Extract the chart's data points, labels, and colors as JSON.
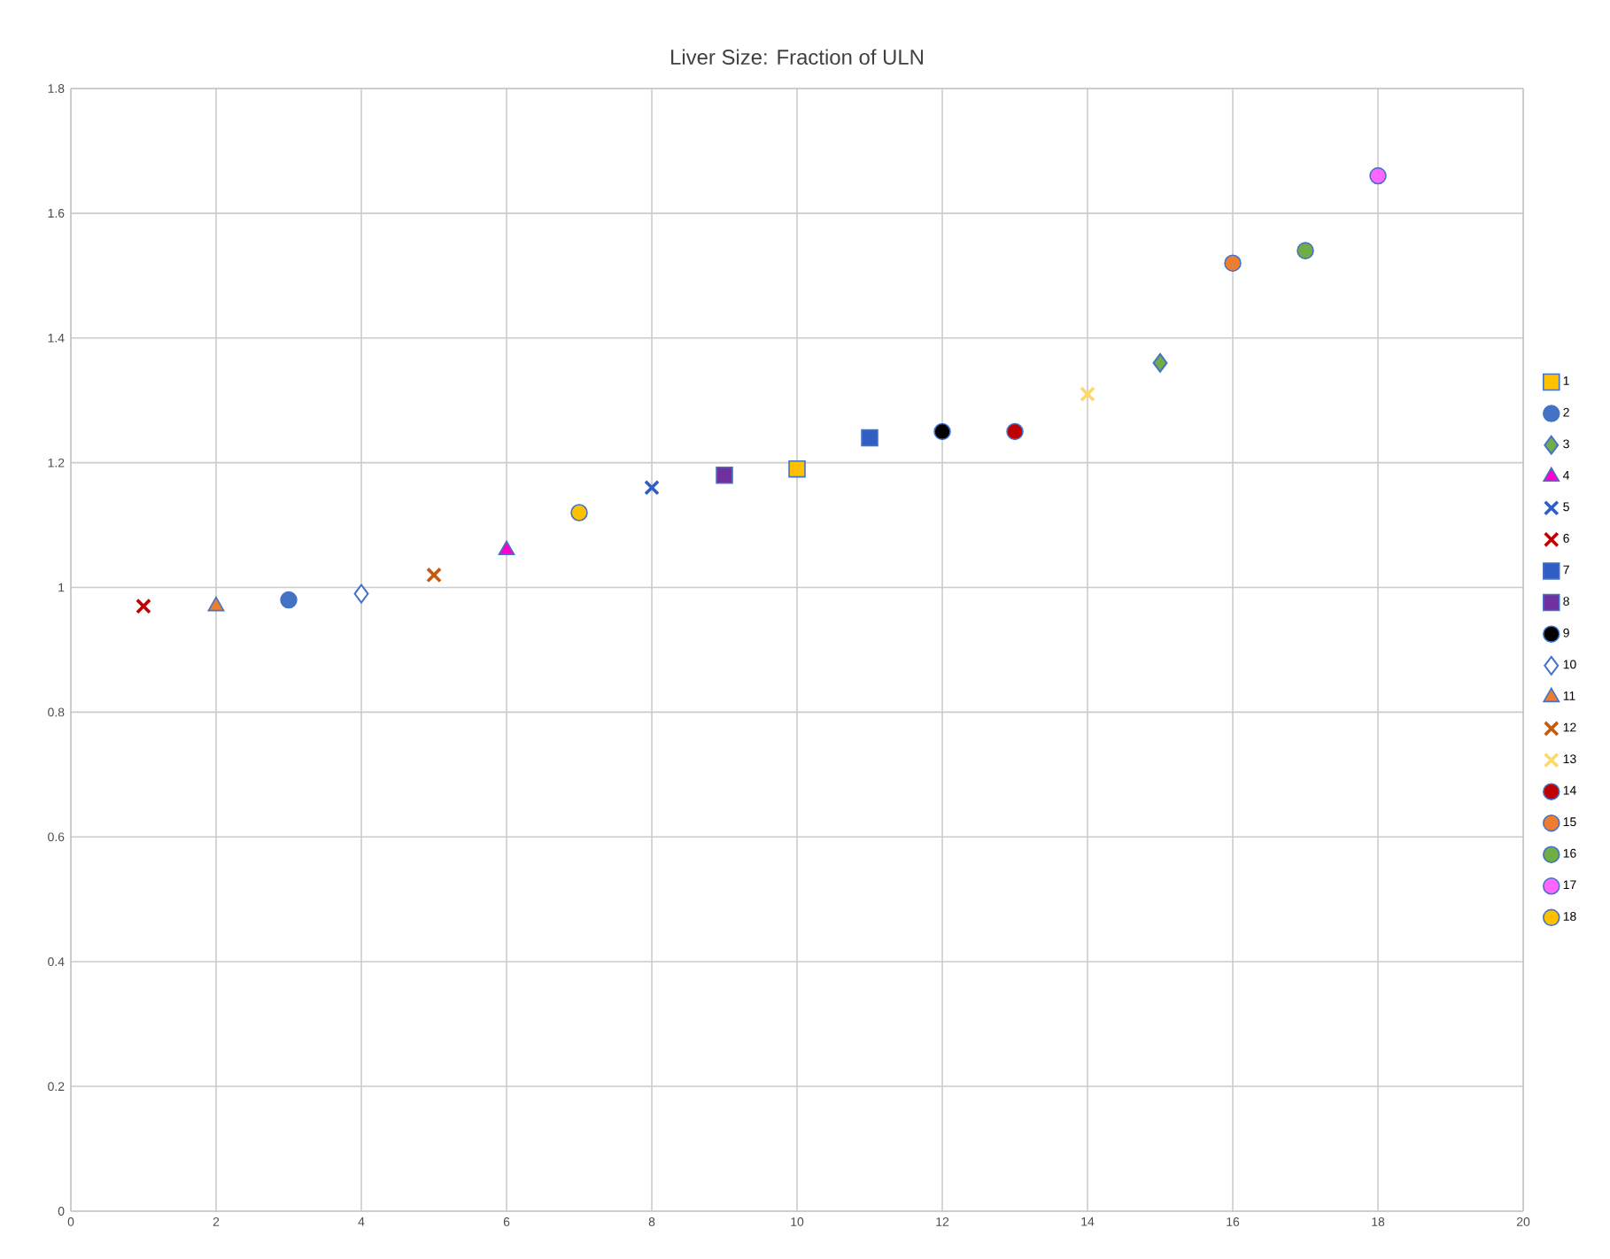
{
  "chart_data": {
    "type": "scatter",
    "title": "Liver Size: Fraction of ULN",
    "xlim": [
      0,
      20
    ],
    "xticks": [
      0,
      2,
      4,
      6,
      8,
      10,
      12,
      14,
      16,
      18,
      20
    ],
    "ylim": [
      0,
      1.8
    ],
    "yticks": [
      0,
      0.2,
      0.4,
      0.6,
      0.8,
      1,
      1.2,
      1.4,
      1.6,
      1.8
    ],
    "grid": true,
    "legend": "right",
    "series": [
      {
        "name": "1",
        "x": [
          10
        ],
        "values": [
          1.19
        ],
        "marker": "square",
        "color": "#ffc000"
      },
      {
        "name": "2",
        "x": [
          3
        ],
        "values": [
          0.98
        ],
        "marker": "circle",
        "color": "#4472c4"
      },
      {
        "name": "3",
        "x": [
          15
        ],
        "values": [
          1.36
        ],
        "marker": "diamond",
        "color": "#70ad47"
      },
      {
        "name": "4",
        "x": [
          6
        ],
        "values": [
          1.06
        ],
        "marker": "triangle",
        "color": "#ff00cc"
      },
      {
        "name": "5",
        "x": [
          8
        ],
        "values": [
          1.16
        ],
        "marker": "cross",
        "color": "#2f5fc4"
      },
      {
        "name": "6",
        "x": [
          1
        ],
        "values": [
          0.97
        ],
        "marker": "cross",
        "color": "#c00000"
      },
      {
        "name": "7",
        "x": [
          11
        ],
        "values": [
          1.24
        ],
        "marker": "square",
        "color": "#2f5fc4"
      },
      {
        "name": "8",
        "x": [
          9
        ],
        "values": [
          1.18
        ],
        "marker": "square",
        "color": "#7030a0"
      },
      {
        "name": "9",
        "x": [
          12
        ],
        "values": [
          1.25
        ],
        "marker": "circle",
        "color": "#000000"
      },
      {
        "name": "10",
        "x": [
          4
        ],
        "values": [
          0.99
        ],
        "marker": "diamond",
        "color": "#ffffff"
      },
      {
        "name": "11",
        "x": [
          2
        ],
        "values": [
          0.97
        ],
        "marker": "triangle",
        "color": "#ed7d31"
      },
      {
        "name": "12",
        "x": [
          5
        ],
        "values": [
          1.02
        ],
        "marker": "cross",
        "color": "#c55a11"
      },
      {
        "name": "13",
        "x": [
          14
        ],
        "values": [
          1.31
        ],
        "marker": "cross",
        "color": "#ffd966"
      },
      {
        "name": "14",
        "x": [
          13
        ],
        "values": [
          1.25
        ],
        "marker": "circle",
        "color": "#c00000"
      },
      {
        "name": "15",
        "x": [
          16
        ],
        "values": [
          1.52
        ],
        "marker": "circle",
        "color": "#ed7d31"
      },
      {
        "name": "16",
        "x": [
          17
        ],
        "values": [
          1.54
        ],
        "marker": "circle",
        "color": "#70ad47"
      },
      {
        "name": "17",
        "x": [
          18
        ],
        "values": [
          1.66
        ],
        "marker": "circle",
        "color": "#ff66ff"
      },
      {
        "name": "18",
        "x": [
          7
        ],
        "values": [
          1.12
        ],
        "marker": "circle",
        "color": "#ffc000"
      }
    ]
  }
}
